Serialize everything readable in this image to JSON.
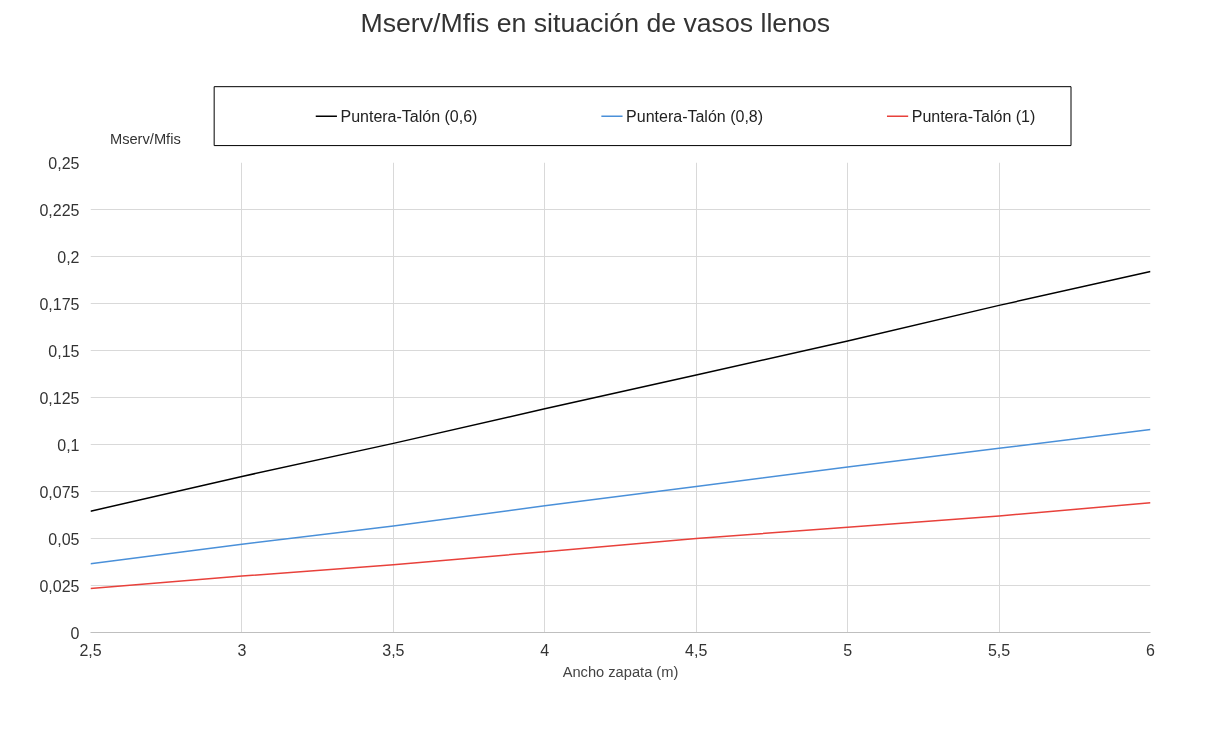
{
  "chart_data": {
    "type": "line",
    "title": "Mserv/Mfis en situación de vasos llenos",
    "xlabel": "Ancho zapata (m)",
    "ylabel": "Mserv/Mfis",
    "x": [
      2.5,
      3,
      3.5,
      4,
      4.5,
      5,
      5.5,
      6
    ],
    "series": [
      {
        "name": "Puntera-Talón (0,6)",
        "color": "#000000",
        "values": [
          0.0645,
          0.083,
          0.1006,
          0.119,
          0.137,
          0.155,
          0.174,
          0.192
        ]
      },
      {
        "name": "Puntera-Talón (0,8)",
        "color": "#4a90d9",
        "values": [
          0.0366,
          0.047,
          0.0566,
          0.0674,
          0.0776,
          0.088,
          0.098,
          0.108
        ]
      },
      {
        "name": "Puntera-Talón (1)",
        "color": "#e8413b",
        "values": [
          0.0234,
          0.03,
          0.036,
          0.043,
          0.05,
          0.056,
          0.062,
          0.069
        ]
      }
    ],
    "xlim": [
      2.5,
      6
    ],
    "xticks": [
      {
        "value": 2.5,
        "label": "2,5"
      },
      3,
      {
        "value": 3.5,
        "label": "3,5"
      },
      4,
      {
        "value": 4.5,
        "label": "4,5"
      },
      5,
      {
        "value": 5.5,
        "label": "5,5"
      },
      6
    ],
    "ylim": [
      0,
      0.25
    ],
    "yticks": [
      0,
      {
        "value": 0.025,
        "label": "0,025"
      },
      {
        "value": 0.05,
        "label": "0,05"
      },
      {
        "value": 0.075,
        "label": "0,075"
      },
      {
        "value": 0.1,
        "label": "0,1"
      },
      {
        "value": 0.125,
        "label": "0,125"
      },
      {
        "value": 0.15,
        "label": "0,15"
      },
      {
        "value": 0.175,
        "label": "0,175"
      },
      {
        "value": 0.2,
        "label": "0,2"
      },
      {
        "value": 0.225,
        "label": "0,225"
      },
      {
        "value": 0.25,
        "label": "0,25"
      }
    ],
    "grid": true,
    "legend": "top",
    "marker": "none",
    "line_style": "solid"
  }
}
